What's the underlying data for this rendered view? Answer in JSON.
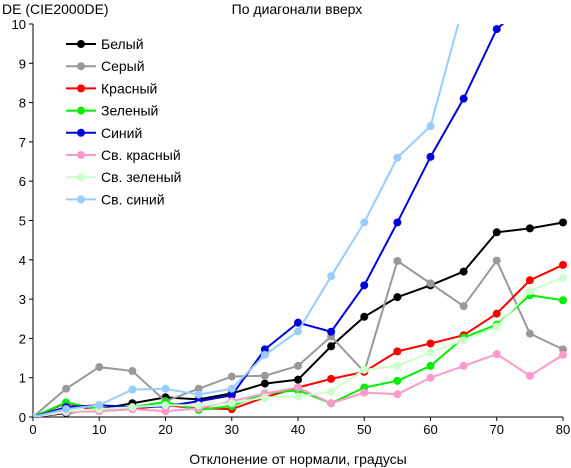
{
  "chart_data": {
    "type": "line",
    "title": "По диагонали вверх",
    "ylabel": "DE (CIE2000DE)",
    "xlabel": "Отклонение от нормали, градусы",
    "xlim": [
      0,
      80
    ],
    "ylim": [
      0,
      10
    ],
    "xticks": [
      "0",
      "10",
      "20",
      "30",
      "40",
      "50",
      "60",
      "70",
      "80"
    ],
    "yticks": [
      "0",
      "1",
      "2",
      "3",
      "4",
      "5",
      "6",
      "7",
      "8",
      "9",
      "10"
    ],
    "grid": false,
    "legend_position": "top-left",
    "x": [
      0,
      5,
      10,
      15,
      20,
      25,
      30,
      35,
      40,
      45,
      50,
      55,
      60,
      65,
      70,
      75,
      80
    ],
    "series": [
      {
        "name": "Белый",
        "color": "#000000",
        "values": [
          0.0,
          0.1,
          0.2,
          0.35,
          0.5,
          0.45,
          0.6,
          0.85,
          0.95,
          1.8,
          2.55,
          3.05,
          3.35,
          3.7,
          4.7,
          4.8,
          4.95
        ]
      },
      {
        "name": "Серый",
        "color": "#999999",
        "values": [
          0.0,
          0.72,
          1.27,
          1.17,
          0.4,
          0.72,
          1.03,
          1.05,
          1.3,
          2.05,
          1.15,
          3.97,
          3.4,
          2.82,
          3.98,
          2.12,
          1.72
        ]
      },
      {
        "name": "Красный",
        "color": "#ff0000",
        "values": [
          0.0,
          0.35,
          0.15,
          0.2,
          0.3,
          0.22,
          0.2,
          0.5,
          0.75,
          0.97,
          1.15,
          1.67,
          1.87,
          2.08,
          2.63,
          3.48,
          3.87
        ]
      },
      {
        "name": "Зеленый",
        "color": "#00ee00",
        "values": [
          0.0,
          0.37,
          0.2,
          0.25,
          0.38,
          0.18,
          0.28,
          0.6,
          0.68,
          0.35,
          0.75,
          0.92,
          1.3,
          2.02,
          2.35,
          3.1,
          2.97
        ]
      },
      {
        "name": "Синий",
        "color": "#0000dd",
        "values": [
          0.0,
          0.25,
          0.3,
          0.25,
          0.27,
          0.4,
          0.55,
          1.72,
          2.4,
          2.17,
          3.35,
          4.95,
          6.62,
          8.1,
          9.87,
          10.6,
          null
        ]
      },
      {
        "name": "Св. красный",
        "color": "#ff99cc",
        "values": [
          0.0,
          0.12,
          0.15,
          0.2,
          0.15,
          0.22,
          0.4,
          0.6,
          0.75,
          0.35,
          0.62,
          0.58,
          1.0,
          1.3,
          1.6,
          1.05,
          1.58
        ]
      },
      {
        "name": "Св. зеленый",
        "color": "#ccffcc",
        "values": [
          0.0,
          0.15,
          0.2,
          0.25,
          0.3,
          0.3,
          0.35,
          0.5,
          0.52,
          0.65,
          1.2,
          1.3,
          1.65,
          1.95,
          2.3,
          3.2,
          3.55
        ]
      },
      {
        "name": "Св. синий",
        "color": "#99ccff",
        "values": [
          0.0,
          0.2,
          0.3,
          0.7,
          0.72,
          0.57,
          0.72,
          1.58,
          2.18,
          3.58,
          4.95,
          6.6,
          7.4,
          10.5,
          null,
          null,
          null
        ]
      }
    ]
  }
}
